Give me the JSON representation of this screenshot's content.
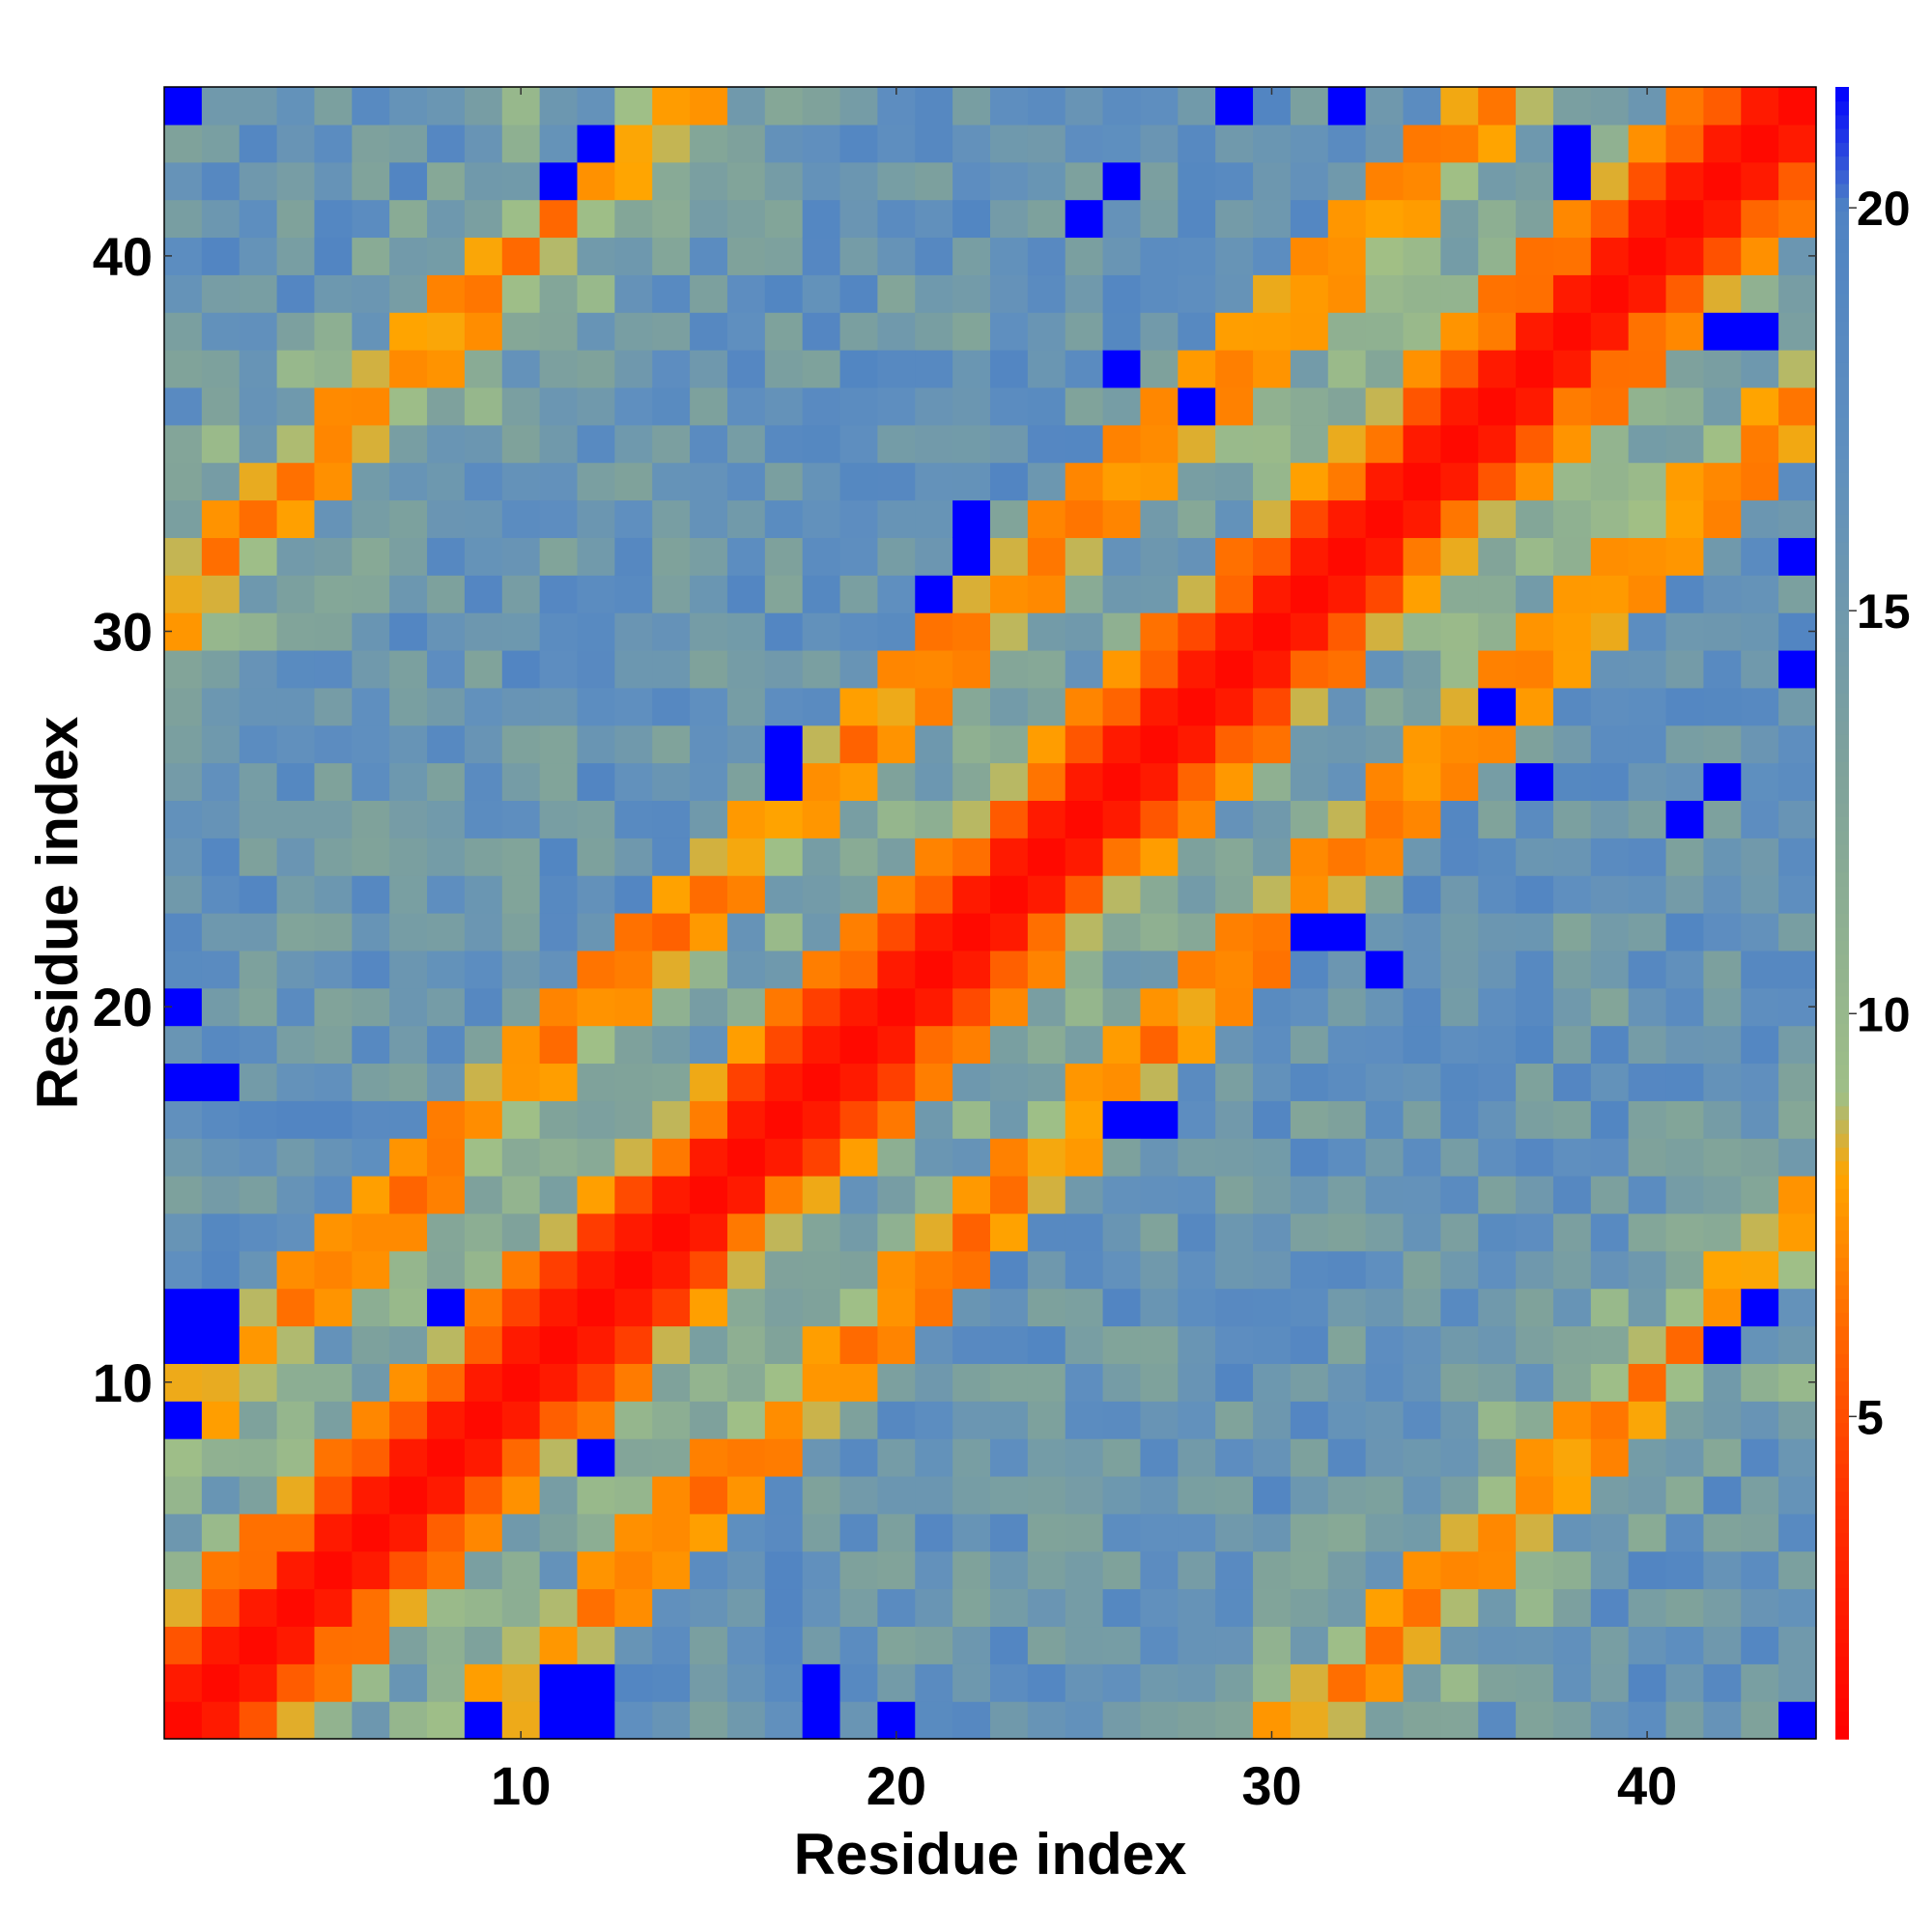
{
  "chart_data": {
    "type": "heatmap",
    "title": "",
    "xlabel": "Residue index",
    "ylabel": "Residue index",
    "n_residues": 44,
    "x_ticks": [
      10,
      20,
      30,
      40
    ],
    "y_ticks": [
      10,
      20,
      30,
      40
    ],
    "xlim": [
      0.5,
      44.5
    ],
    "ylim": [
      0.5,
      44.5
    ],
    "colorbar": {
      "range": [
        1,
        21.5
      ],
      "ticks": [
        5,
        10,
        15,
        20
      ],
      "placement": "right",
      "stops": [
        {
          "value": 1,
          "color": "#ff0000"
        },
        {
          "value": 4,
          "color": "#ff3300"
        },
        {
          "value": 6,
          "color": "#ff6600"
        },
        {
          "value": 8,
          "color": "#ffa500"
        },
        {
          "value": 9,
          "color": "#9fbf87"
        },
        {
          "value": 13,
          "color": "#7fa29b"
        },
        {
          "value": 17,
          "color": "#5f8fbf"
        },
        {
          "value": 20,
          "color": "#4f83c3"
        },
        {
          "value": 21.5,
          "color": "#0000ff"
        }
      ]
    },
    "band_structure": {
      "description_rule": "value grows with |i-j|; diagonal red, helical ridges orange at offsets ~7-10 and ~28-33",
      "ridges": [
        {
          "offset": 0,
          "value": 1.5
        },
        {
          "offset": 1,
          "value": 2.5
        },
        {
          "offset": 2,
          "value": 5.5
        },
        {
          "offset": 3,
          "value": 7.5
        },
        {
          "offset": 7,
          "value": 8.0
        },
        {
          "offset": 8,
          "value": 7.0
        },
        {
          "offset": 9,
          "value": 7.5
        },
        {
          "offset": 29,
          "value": 8.0
        },
        {
          "offset": 30,
          "value": 7.0
        },
        {
          "offset": 31,
          "value": 8.0
        }
      ],
      "background_value": 16.0,
      "max_value": 21.5
    },
    "max_cells": [
      [
        1,
        20
      ],
      [
        1,
        18
      ],
      [
        2,
        18
      ],
      [
        1,
        12
      ],
      [
        2,
        12
      ],
      [
        1,
        11
      ],
      [
        2,
        11
      ],
      [
        1,
        9
      ],
      [
        9,
        1
      ],
      [
        11,
        1
      ],
      [
        11,
        2
      ],
      [
        12,
        1
      ],
      [
        12,
        2
      ],
      [
        18,
        1
      ],
      [
        18,
        2
      ],
      [
        20,
        1
      ],
      [
        8,
        12
      ],
      [
        12,
        8
      ],
      [
        12,
        8
      ],
      [
        17,
        26
      ],
      [
        17,
        27
      ],
      [
        26,
        17
      ],
      [
        27,
        17
      ],
      [
        22,
        32
      ],
      [
        22,
        33
      ],
      [
        21,
        31
      ],
      [
        32,
        22
      ],
      [
        33,
        21
      ],
      [
        31,
        22
      ],
      [
        29,
        44
      ],
      [
        32,
        44
      ],
      [
        44,
        29
      ],
      [
        44,
        32
      ],
      [
        26,
        37
      ],
      [
        37,
        26
      ],
      [
        25,
        41
      ],
      [
        41,
        25
      ],
      [
        11,
        42
      ],
      [
        42,
        11
      ],
      [
        36,
        28
      ],
      [
        28,
        36
      ],
      [
        42,
        26
      ],
      [
        26,
        42
      ],
      [
        44,
        29
      ],
      [
        44,
        32
      ],
      [
        38,
        42
      ],
      [
        38,
        43
      ],
      [
        42,
        38
      ],
      [
        43,
        38
      ],
      [
        43,
        12
      ],
      [
        12,
        43
      ],
      [
        1,
        44
      ],
      [
        44,
        1
      ]
    ]
  }
}
